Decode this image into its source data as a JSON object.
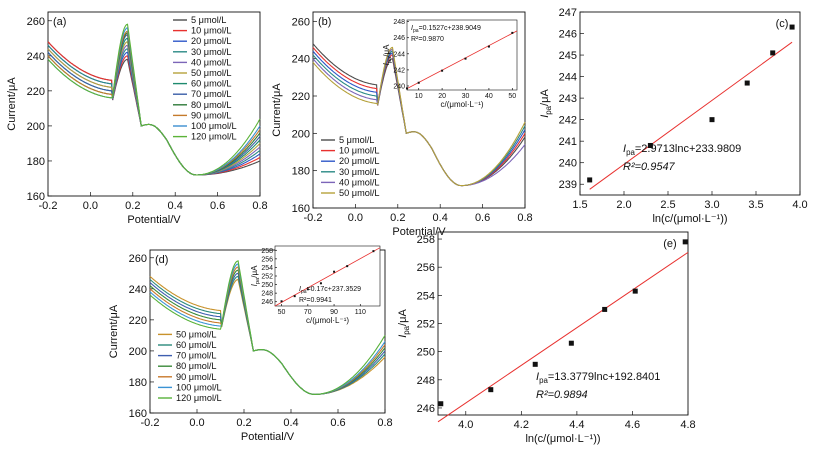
{
  "figure": {
    "panels": [
      {
        "id": "a",
        "label": "(a)",
        "type": "line",
        "xlabel": "Potential/V",
        "ylabel": "Current/μA",
        "xlim": [
          -0.2,
          0.8
        ],
        "ylim": [
          160,
          265
        ],
        "xticks": [
          -0.2,
          0.0,
          0.2,
          0.4,
          0.6,
          0.8
        ],
        "yticks": [
          160,
          180,
          200,
          220,
          240,
          260
        ],
        "legend": "top-right",
        "series": [
          {
            "name": "5 μmol/L",
            "color": "#4d4d4d",
            "peak": 238,
            "tail": 180,
            "startDrop": 0
          },
          {
            "name": "10 μmol/L",
            "color": "#e8312f",
            "peak": 240,
            "tail": 182,
            "startDrop": 0
          },
          {
            "name": "20 μmol/L",
            "color": "#2f58c8",
            "peak": 242,
            "tail": 184,
            "startDrop": 2
          },
          {
            "name": "30 μmol/L",
            "color": "#2b8a86",
            "peak": 244,
            "tail": 186,
            "startDrop": 2
          },
          {
            "name": "40 μmol/L",
            "color": "#7c65b8",
            "peak": 246,
            "tail": 188,
            "startDrop": 4
          },
          {
            "name": "50 μmol/L",
            "color": "#b5a13a",
            "peak": 248,
            "tail": 190,
            "startDrop": 4
          },
          {
            "name": "60 μmol/L",
            "color": "#1e8a6e",
            "peak": 250,
            "tail": 192,
            "startDrop": 6
          },
          {
            "name": "70 μmol/L",
            "color": "#3a5ea8",
            "peak": 252,
            "tail": 194,
            "startDrop": 6
          },
          {
            "name": "80 μmol/L",
            "color": "#2f7a3a",
            "peak": 253,
            "tail": 196,
            "startDrop": 8
          },
          {
            "name": "90 μmol/L",
            "color": "#c47a2b",
            "peak": 254,
            "tail": 198,
            "startDrop": 8
          },
          {
            "name": "100 μmol/L",
            "color": "#3a8fd0",
            "peak": 256,
            "tail": 200,
            "startDrop": 10
          },
          {
            "name": "120 μmol/L",
            "color": "#5cb338",
            "peak": 258,
            "tail": 204,
            "startDrop": 10
          }
        ]
      },
      {
        "id": "b",
        "label": "(b)",
        "type": "line",
        "xlabel": "Potential/V",
        "ylabel": "Current/μA",
        "xlim": [
          -0.2,
          0.8
        ],
        "ylim": [
          160,
          265
        ],
        "xticks": [
          -0.2,
          0.0,
          0.2,
          0.4,
          0.6,
          0.8
        ],
        "yticks": [
          160,
          180,
          200,
          220,
          240,
          260
        ],
        "legend": "bottom-left",
        "series": [
          {
            "name": "5 μmol/L",
            "color": "#4d4d4d",
            "peak": 240,
            "tail": 198,
            "startDrop": 0
          },
          {
            "name": "10 μmol/L",
            "color": "#e8312f",
            "peak": 242,
            "tail": 200,
            "startDrop": 2
          },
          {
            "name": "20 μmol/L",
            "color": "#2f58c8",
            "peak": 243,
            "tail": 202,
            "startDrop": 4
          },
          {
            "name": "30 μmol/L",
            "color": "#2b8a86",
            "peak": 244,
            "tail": 204,
            "startDrop": 6
          },
          {
            "name": "40 μmol/L",
            "color": "#7c65b8",
            "peak": 245,
            "tail": 194,
            "startDrop": 8
          },
          {
            "name": "50 μmol/L",
            "color": "#b5a13a",
            "peak": 246,
            "tail": 206,
            "startDrop": 10
          }
        ],
        "inset": {
          "xlabel": "c/(μmol·L⁻¹)",
          "ylabel": "Ipa/μA",
          "xlim": [
            5,
            52
          ],
          "ylim": [
            239.5,
            248.2
          ],
          "xticks": [
            10,
            20,
            30,
            40,
            50
          ],
          "yticks": [
            240,
            242,
            244,
            246,
            248
          ],
          "x": [
            5,
            10,
            20,
            30,
            40,
            50
          ],
          "y": [
            239.7,
            240.4,
            241.9,
            243.4,
            244.9,
            246.6
          ],
          "fit": {
            "slope": 0.1527,
            "intercept": 238.9049
          },
          "eq_prefix": "I",
          "eq_sub": "pa",
          "eq_rest": "=0.1527c+238.9049",
          "r2": "R²=0.9870"
        }
      },
      {
        "id": "c",
        "label": "(c)",
        "type": "scatter",
        "xlabel": "ln(c/(μmol·L⁻¹))",
        "ylabel": "Ipa/μA",
        "xlim": [
          1.5,
          4.0
        ],
        "ylim": [
          238.5,
          247
        ],
        "xticks": [
          1.5,
          2.0,
          2.5,
          3.0,
          3.5,
          4.0
        ],
        "yticks": [
          239,
          240,
          241,
          242,
          243,
          244,
          245,
          246,
          247
        ],
        "x": [
          1.61,
          2.3,
          3.0,
          3.4,
          3.69,
          3.91
        ],
        "y": [
          239.2,
          240.8,
          242.0,
          243.7,
          245.1,
          246.3
        ],
        "fit": {
          "slope": 2.9713,
          "intercept": 233.9809,
          "from": 1.61,
          "to": 3.91
        },
        "eq_prefix": "I",
        "eq_sub": "pa",
        "eq_rest": "=2.9713lnc+233.9809",
        "r2": "R²=0.9547"
      },
      {
        "id": "d",
        "label": "(d)",
        "type": "line",
        "xlabel": "Potential/V",
        "ylabel": "Current/μA",
        "xlim": [
          -0.2,
          0.8
        ],
        "ylim": [
          160,
          265
        ],
        "xticks": [
          -0.2,
          0.0,
          0.2,
          0.4,
          0.6,
          0.8
        ],
        "yticks": [
          160,
          180,
          200,
          220,
          240,
          260
        ],
        "legend": "bottom-left",
        "series": [
          {
            "name": "50 μmol/L",
            "color": "#c8922b",
            "peak": 246,
            "tail": 196,
            "startDrop": 0
          },
          {
            "name": "60 μmol/L",
            "color": "#2a8a7c",
            "peak": 248,
            "tail": 198,
            "startDrop": 2
          },
          {
            "name": "70 μmol/L",
            "color": "#3f5fb0",
            "peak": 250,
            "tail": 200,
            "startDrop": 4
          },
          {
            "name": "80 μmol/L",
            "color": "#3b8a3a",
            "peak": 252,
            "tail": 202,
            "startDrop": 6
          },
          {
            "name": "90 μmol/L",
            "color": "#c97a2c",
            "peak": 254,
            "tail": 204,
            "startDrop": 8
          },
          {
            "name": "100 μmol/L",
            "color": "#3a93d4",
            "peak": 256,
            "tail": 206,
            "startDrop": 10
          },
          {
            "name": "120 μmol/L",
            "color": "#58b23a",
            "peak": 258,
            "tail": 210,
            "startDrop": 12
          }
        ],
        "inset": {
          "xlabel": "c/(μmol·L⁻¹)",
          "ylabel": "Ipa/μA",
          "xlim": [
            45,
            125
          ],
          "ylim": [
            245,
            259
          ],
          "xticks": [
            50,
            70,
            90,
            110
          ],
          "yticks": [
            246,
            248,
            250,
            252,
            254,
            256,
            258
          ],
          "x": [
            50,
            60,
            70,
            80,
            90,
            100,
            120
          ],
          "y": [
            246.1,
            247.3,
            248.9,
            250.3,
            253.0,
            254.3,
            257.8
          ],
          "fit": {
            "slope": 0.17,
            "intercept": 237.3529
          },
          "eq_prefix": "I",
          "eq_sub": "pa",
          "eq_rest": "=0.17c+237.3529",
          "r2": "R²=0.9941"
        }
      },
      {
        "id": "e",
        "label": "(e)",
        "type": "scatter",
        "xlabel": "ln(c/(μmol·L⁻¹))",
        "ylabel": "Ipa/μA",
        "xlim": [
          3.9,
          4.8
        ],
        "ylim": [
          245.5,
          258.5
        ],
        "xticks": [
          4.0,
          4.2,
          4.4,
          4.6,
          4.8
        ],
        "yticks": [
          246,
          248,
          250,
          252,
          254,
          256,
          258
        ],
        "x": [
          3.91,
          4.09,
          4.25,
          4.38,
          4.5,
          4.61,
          4.79
        ],
        "y": [
          246.3,
          247.3,
          249.1,
          250.6,
          253.0,
          254.3,
          257.8
        ],
        "fit": {
          "slope": 13.3779,
          "intercept": 192.8401,
          "from": 3.9,
          "to": 4.8
        },
        "eq_prefix": "I",
        "eq_sub": "pa",
        "eq_rest": "=13.3779lnc+192.8401",
        "r2": "R²=0.9894"
      }
    ]
  },
  "chart_data": [
    {
      "type": "line",
      "title": "(a)",
      "xlabel": "Potential/V",
      "ylabel": "Current/μA",
      "xlim": [
        -0.2,
        0.8
      ],
      "ylim": [
        160,
        265
      ],
      "series": [
        {
          "name": "5 μmol/L"
        },
        {
          "name": "10 μmol/L"
        },
        {
          "name": "20 μmol/L"
        },
        {
          "name": "30 μmol/L"
        },
        {
          "name": "40 μmol/L"
        },
        {
          "name": "50 μmol/L"
        },
        {
          "name": "60 μmol/L"
        },
        {
          "name": "70 μmol/L"
        },
        {
          "name": "80 μmol/L"
        },
        {
          "name": "90 μmol/L"
        },
        {
          "name": "100 μmol/L"
        },
        {
          "name": "120 μmol/L"
        }
      ]
    },
    {
      "type": "line",
      "title": "(b)",
      "xlabel": "Potential/V",
      "ylabel": "Current/μA",
      "xlim": [
        -0.2,
        0.8
      ],
      "ylim": [
        160,
        265
      ],
      "series": [
        {
          "name": "5 μmol/L"
        },
        {
          "name": "10 μmol/L"
        },
        {
          "name": "20 μmol/L"
        },
        {
          "name": "30 μmol/L"
        },
        {
          "name": "40 μmol/L"
        },
        {
          "name": "50 μmol/L"
        }
      ]
    },
    {
      "type": "scatter",
      "title": "(b) inset",
      "xlabel": "c/(μmol·L⁻¹)",
      "ylabel": "Ipa/μA",
      "x": [
        5,
        10,
        20,
        30,
        40,
        50
      ],
      "y": [
        239.7,
        240.4,
        241.9,
        243.4,
        244.9,
        246.6
      ],
      "annotation": "Ipa=0.1527c+238.9049, R²=0.9870"
    },
    {
      "type": "scatter",
      "title": "(c)",
      "xlabel": "ln(c/(μmol·L⁻¹))",
      "ylabel": "Ipa/μA",
      "x": [
        1.61,
        2.3,
        3.0,
        3.4,
        3.69,
        3.91
      ],
      "y": [
        239.2,
        240.8,
        242.0,
        243.7,
        245.1,
        246.3
      ],
      "annotation": "Ipa=2.9713lnc+233.9809, R²=0.9547"
    },
    {
      "type": "line",
      "title": "(d)",
      "xlabel": "Potential/V",
      "ylabel": "Current/μA",
      "xlim": [
        -0.2,
        0.8
      ],
      "ylim": [
        160,
        265
      ],
      "series": [
        {
          "name": "50 μmol/L"
        },
        {
          "name": "60 μmol/L"
        },
        {
          "name": "70 μmol/L"
        },
        {
          "name": "80 μmol/L"
        },
        {
          "name": "90 μmol/L"
        },
        {
          "name": "100 μmol/L"
        },
        {
          "name": "120 μmol/L"
        }
      ]
    },
    {
      "type": "scatter",
      "title": "(d) inset",
      "xlabel": "c/(μmol·L⁻¹)",
      "ylabel": "Ipa/μA",
      "x": [
        50,
        60,
        70,
        80,
        90,
        100,
        120
      ],
      "y": [
        246.1,
        247.3,
        248.9,
        250.3,
        253.0,
        254.3,
        257.8
      ],
      "annotation": "Ipa=0.17c+237.3529, R²=0.9941"
    },
    {
      "type": "scatter",
      "title": "(e)",
      "xlabel": "ln(c/(μmol·L⁻¹))",
      "ylabel": "Ipa/μA",
      "x": [
        3.91,
        4.09,
        4.25,
        4.38,
        4.5,
        4.61,
        4.79
      ],
      "y": [
        246.3,
        247.3,
        249.1,
        250.6,
        253.0,
        254.3,
        257.8
      ],
      "annotation": "Ipa=13.3779lnc+192.8401, R²=0.9894"
    }
  ]
}
